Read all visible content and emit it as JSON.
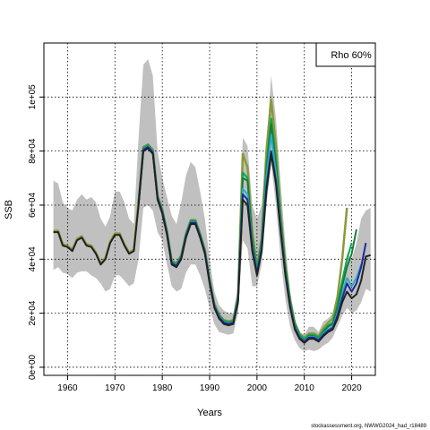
{
  "chart_data": {
    "type": "line",
    "title": "",
    "xlabel": "Years",
    "ylabel": "SSB",
    "xlim": [
      1955,
      2025
    ],
    "ylim": [
      -3000,
      120000
    ],
    "x_ticks": [
      1960,
      1970,
      1980,
      1990,
      2000,
      2010,
      2020
    ],
    "x_tick_labels": [
      "1960",
      "1970",
      "1980",
      "1990",
      "2000",
      "2010",
      "2020"
    ],
    "y_ticks": [
      0,
      20000,
      40000,
      60000,
      80000,
      100000
    ],
    "y_tick_labels": [
      "0e+00",
      "2e+04",
      "4e+04",
      "6e+04",
      "8e+04",
      "1e+05"
    ],
    "grid": true,
    "legend": {
      "text": "Rho 60%",
      "placement": "top-right"
    },
    "footnote": "stockassessment.org, NWWG2024_had_r18489",
    "band": {
      "years": [
        1957,
        1958,
        1959,
        1960,
        1961,
        1962,
        1963,
        1964,
        1965,
        1966,
        1967,
        1968,
        1969,
        1970,
        1971,
        1972,
        1973,
        1974,
        1975,
        1976,
        1977,
        1978,
        1979,
        1980,
        1981,
        1982,
        1983,
        1984,
        1985,
        1986,
        1987,
        1988,
        1989,
        1990,
        1991,
        1992,
        1993,
        1994,
        1995,
        1996,
        1997,
        1998,
        1999,
        2000,
        2001,
        2002,
        2003,
        2004,
        2005,
        2006,
        2007,
        2008,
        2009,
        2010,
        2011,
        2012,
        2013,
        2014,
        2015,
        2016,
        2017,
        2018,
        2019,
        2020,
        2021,
        2022,
        2023,
        2024
      ],
      "lower": [
        36000,
        37000,
        35000,
        34500,
        33000,
        35000,
        35500,
        35500,
        34000,
        33000,
        31000,
        28000,
        29000,
        34000,
        34000,
        32000,
        30000,
        31000,
        40000,
        59000,
        60000,
        58000,
        50000,
        47000,
        38000,
        30000,
        28000,
        29000,
        35000,
        38000,
        38000,
        34000,
        29000,
        22000,
        16000,
        13000,
        12500,
        12000,
        12500,
        20000,
        47000,
        44000,
        30000,
        30000,
        38000,
        60000,
        75000,
        60000,
        40000,
        25000,
        15000,
        10000,
        7000,
        6000,
        6500,
        6000,
        6500,
        8000,
        9000,
        11000,
        15000,
        19000,
        22000,
        20000,
        21000,
        24000,
        29000,
        28000
      ],
      "upper": [
        69000,
        68000,
        61000,
        59000,
        58000,
        62000,
        64000,
        62000,
        63000,
        61000,
        55000,
        52000,
        56000,
        65000,
        65000,
        61000,
        55000,
        53000,
        85000,
        112000,
        114000,
        108000,
        80000,
        70000,
        63000,
        56000,
        53000,
        61000,
        71000,
        76000,
        74000,
        65000,
        55000,
        40000,
        28000,
        23000,
        21000,
        20000,
        20000,
        30000,
        85000,
        82000,
        60000,
        55000,
        60000,
        82000,
        108000,
        92000,
        68000,
        45000,
        28000,
        18000,
        13000,
        12000,
        15000,
        15000,
        13000,
        17000,
        18000,
        20000,
        24000,
        33000,
        42000,
        40000,
        46000,
        55000,
        58000,
        59000
      ]
    },
    "series": [
      {
        "color": "#222222",
        "width": 2,
        "x": [
          1957,
          1958,
          1959,
          1960,
          1961,
          1962,
          1963,
          1964,
          1965,
          1966,
          1967,
          1968,
          1969,
          1970,
          1971,
          1972,
          1973,
          1974,
          1975,
          1976,
          1977,
          1978,
          1979,
          1980,
          1981,
          1982,
          1983,
          1984,
          1985,
          1986,
          1987,
          1988,
          1989,
          1990,
          1991,
          1992,
          1993,
          1994,
          1995,
          1996,
          1997,
          1998,
          1999,
          2000,
          2001,
          2002,
          2003,
          2004,
          2005,
          2006,
          2007,
          2008,
          2009,
          2010,
          2011,
          2012,
          2013,
          2014,
          2015,
          2016,
          2017,
          2018,
          2019,
          2020,
          2021,
          2022,
          2023,
          2024
        ],
        "y": [
          50000,
          50000,
          45000,
          44500,
          43000,
          47000,
          48000,
          45000,
          44500,
          42000,
          38000,
          40000,
          46000,
          49000,
          49000,
          45000,
          42000,
          43000,
          60000,
          80000,
          81000,
          79000,
          62000,
          57000,
          49000,
          38000,
          37000,
          40000,
          48000,
          53000,
          53000,
          48000,
          42000,
          31000,
          22000,
          18000,
          16000,
          15500,
          16000,
          24000,
          62000,
          60000,
          43000,
          34000,
          43000,
          65000,
          79000,
          68000,
          50000,
          34000,
          22000,
          14000,
          10500,
          9000,
          10500,
          10500,
          9500,
          11500,
          13000,
          14000,
          18000,
          24000,
          28000,
          25500,
          27000,
          32000,
          41000,
          41500
        ]
      },
      {
        "color": "#1e2a99",
        "width": 2,
        "x": [
          1975,
          1976,
          1977,
          1978,
          1979,
          1980,
          1981,
          1982,
          1983,
          1984,
          1985,
          1986,
          1987,
          1988,
          1989,
          1990,
          1991,
          1992,
          1993,
          1994,
          1995,
          1996,
          1997,
          1998,
          1999,
          2000,
          2001,
          2002,
          2003,
          2004,
          2005,
          2006,
          2007,
          2008,
          2009,
          2010,
          2011,
          2012,
          2013,
          2014,
          2015,
          2016,
          2017,
          2018,
          2019,
          2020,
          2021,
          2022,
          2023
        ],
        "y": [
          60500,
          80500,
          81500,
          79500,
          62500,
          57500,
          49500,
          38500,
          37500,
          40500,
          48500,
          53500,
          53500,
          48500,
          42500,
          31500,
          22500,
          18500,
          16500,
          16000,
          16500,
          24500,
          64000,
          62000,
          44000,
          35000,
          44000,
          67000,
          80000,
          69000,
          51000,
          34500,
          22500,
          14500,
          11000,
          9500,
          11000,
          11000,
          10000,
          12000,
          13500,
          14500,
          19000,
          25500,
          31000,
          28000,
          31000,
          37000,
          46000
        ]
      },
      {
        "color": "#2aaac7",
        "width": 2,
        "x": [
          1975,
          1976,
          1977,
          1978,
          1979,
          1980,
          1981,
          1982,
          1983,
          1984,
          1985,
          1986,
          1987,
          1988,
          1989,
          1990,
          1991,
          1992,
          1993,
          1994,
          1995,
          1996,
          1997,
          1998,
          1999,
          2000,
          2001,
          2002,
          2003,
          2004,
          2005,
          2006,
          2007,
          2008,
          2009,
          2010,
          2011,
          2012,
          2013,
          2014,
          2015,
          2016,
          2017,
          2018,
          2019,
          2020,
          2021,
          2022
        ],
        "y": [
          60800,
          80800,
          81800,
          79800,
          62800,
          57800,
          49800,
          38800,
          37800,
          40800,
          48800,
          53800,
          53800,
          48800,
          42800,
          31800,
          22800,
          18800,
          16800,
          16300,
          16800,
          25000,
          66000,
          64000,
          45000,
          35500,
          45000,
          70000,
          86000,
          72000,
          52000,
          35000,
          23000,
          15000,
          11300,
          9800,
          11300,
          11300,
          10300,
          12500,
          14000,
          15000,
          20000,
          27000,
          33000,
          30000,
          33000,
          38000
        ]
      },
      {
        "color": "#1d7a3a",
        "width": 2,
        "x": [
          1975,
          1976,
          1977,
          1978,
          1979,
          1980,
          1981,
          1982,
          1983,
          1984,
          1985,
          1986,
          1987,
          1988,
          1989,
          1990,
          1991,
          1992,
          1993,
          1994,
          1995,
          1996,
          1997,
          1998,
          1999,
          2000,
          2001,
          2002,
          2003,
          2004,
          2005,
          2006,
          2007,
          2008,
          2009,
          2010,
          2011,
          2012,
          2013,
          2014,
          2015,
          2016,
          2017,
          2018,
          2019,
          2020,
          2021
        ],
        "y": [
          61000,
          81000,
          82000,
          80000,
          63000,
          58000,
          50000,
          39000,
          38000,
          41000,
          49000,
          54000,
          54000,
          49000,
          43000,
          32000,
          23000,
          19000,
          17000,
          16500,
          17000,
          25500,
          70000,
          69000,
          47000,
          36000,
          46000,
          73000,
          90000,
          75000,
          54000,
          36000,
          24000,
          15500,
          11500,
          10000,
          11500,
          11500,
          10500,
          13000,
          15000,
          16000,
          22000,
          30000,
          37000,
          42000,
          51000
        ]
      },
      {
        "color": "#00aa55",
        "width": 2,
        "x": [
          1975,
          1976,
          1977,
          1978,
          1979,
          1980,
          1981,
          1982,
          1983,
          1984,
          1985,
          1986,
          1987,
          1988,
          1989,
          1990,
          1991,
          1992,
          1993,
          1994,
          1995,
          1996,
          1997,
          1998,
          1999,
          2000,
          2001,
          2002,
          2003,
          2004,
          2005,
          2006,
          2007,
          2008,
          2009,
          2010,
          2011,
          2012,
          2013,
          2014,
          2015,
          2016,
          2017,
          2018,
          2019,
          2020
        ],
        "y": [
          61200,
          81200,
          82200,
          80200,
          63200,
          58200,
          50200,
          39200,
          38200,
          41200,
          49200,
          54200,
          54200,
          49200,
          43200,
          32200,
          23200,
          19200,
          17200,
          16700,
          17200,
          26000,
          72000,
          70000,
          48000,
          36500,
          47000,
          75000,
          92000,
          77000,
          55000,
          37000,
          24500,
          16000,
          12000,
          10500,
          12000,
          12000,
          11000,
          13500,
          15500,
          16500,
          23000,
          32000,
          40000,
          46000
        ]
      },
      {
        "color": "#8a9a3a",
        "width": 2.5,
        "x": [
          1957,
          1958,
          1959,
          1960,
          1961,
          1962,
          1963,
          1964,
          1965,
          1966,
          1967,
          1968,
          1969,
          1970,
          1971,
          1972,
          1973,
          1974,
          1975,
          1976,
          1977,
          1978,
          1979,
          1980,
          1981,
          1982,
          1983,
          1984,
          1985,
          1986,
          1987,
          1988,
          1989,
          1990,
          1991,
          1992,
          1993,
          1994,
          1995,
          1996,
          1997,
          1998,
          1999,
          2000,
          2001,
          2002,
          2003,
          2004,
          2005,
          2006,
          2007,
          2008,
          2009,
          2010,
          2011,
          2012,
          2013,
          2014,
          2015,
          2016,
          2017,
          2018,
          2019
        ],
        "y": [
          50500,
          50500,
          45500,
          45000,
          43500,
          47500,
          48500,
          45500,
          45000,
          42500,
          38500,
          40500,
          46500,
          49500,
          49500,
          45500,
          42500,
          43500,
          61500,
          81500,
          82500,
          80500,
          63500,
          58500,
          50500,
          39500,
          38500,
          41500,
          49500,
          54500,
          54500,
          49500,
          43500,
          32500,
          23500,
          19500,
          17500,
          17000,
          17500,
          26500,
          79000,
          74000,
          50000,
          37000,
          48000,
          80000,
          99000,
          82000,
          57000,
          38000,
          25000,
          16500,
          12500,
          11000,
          12500,
          12500,
          11500,
          14500,
          16500,
          18000,
          26000,
          40000,
          59000
        ]
      }
    ]
  }
}
